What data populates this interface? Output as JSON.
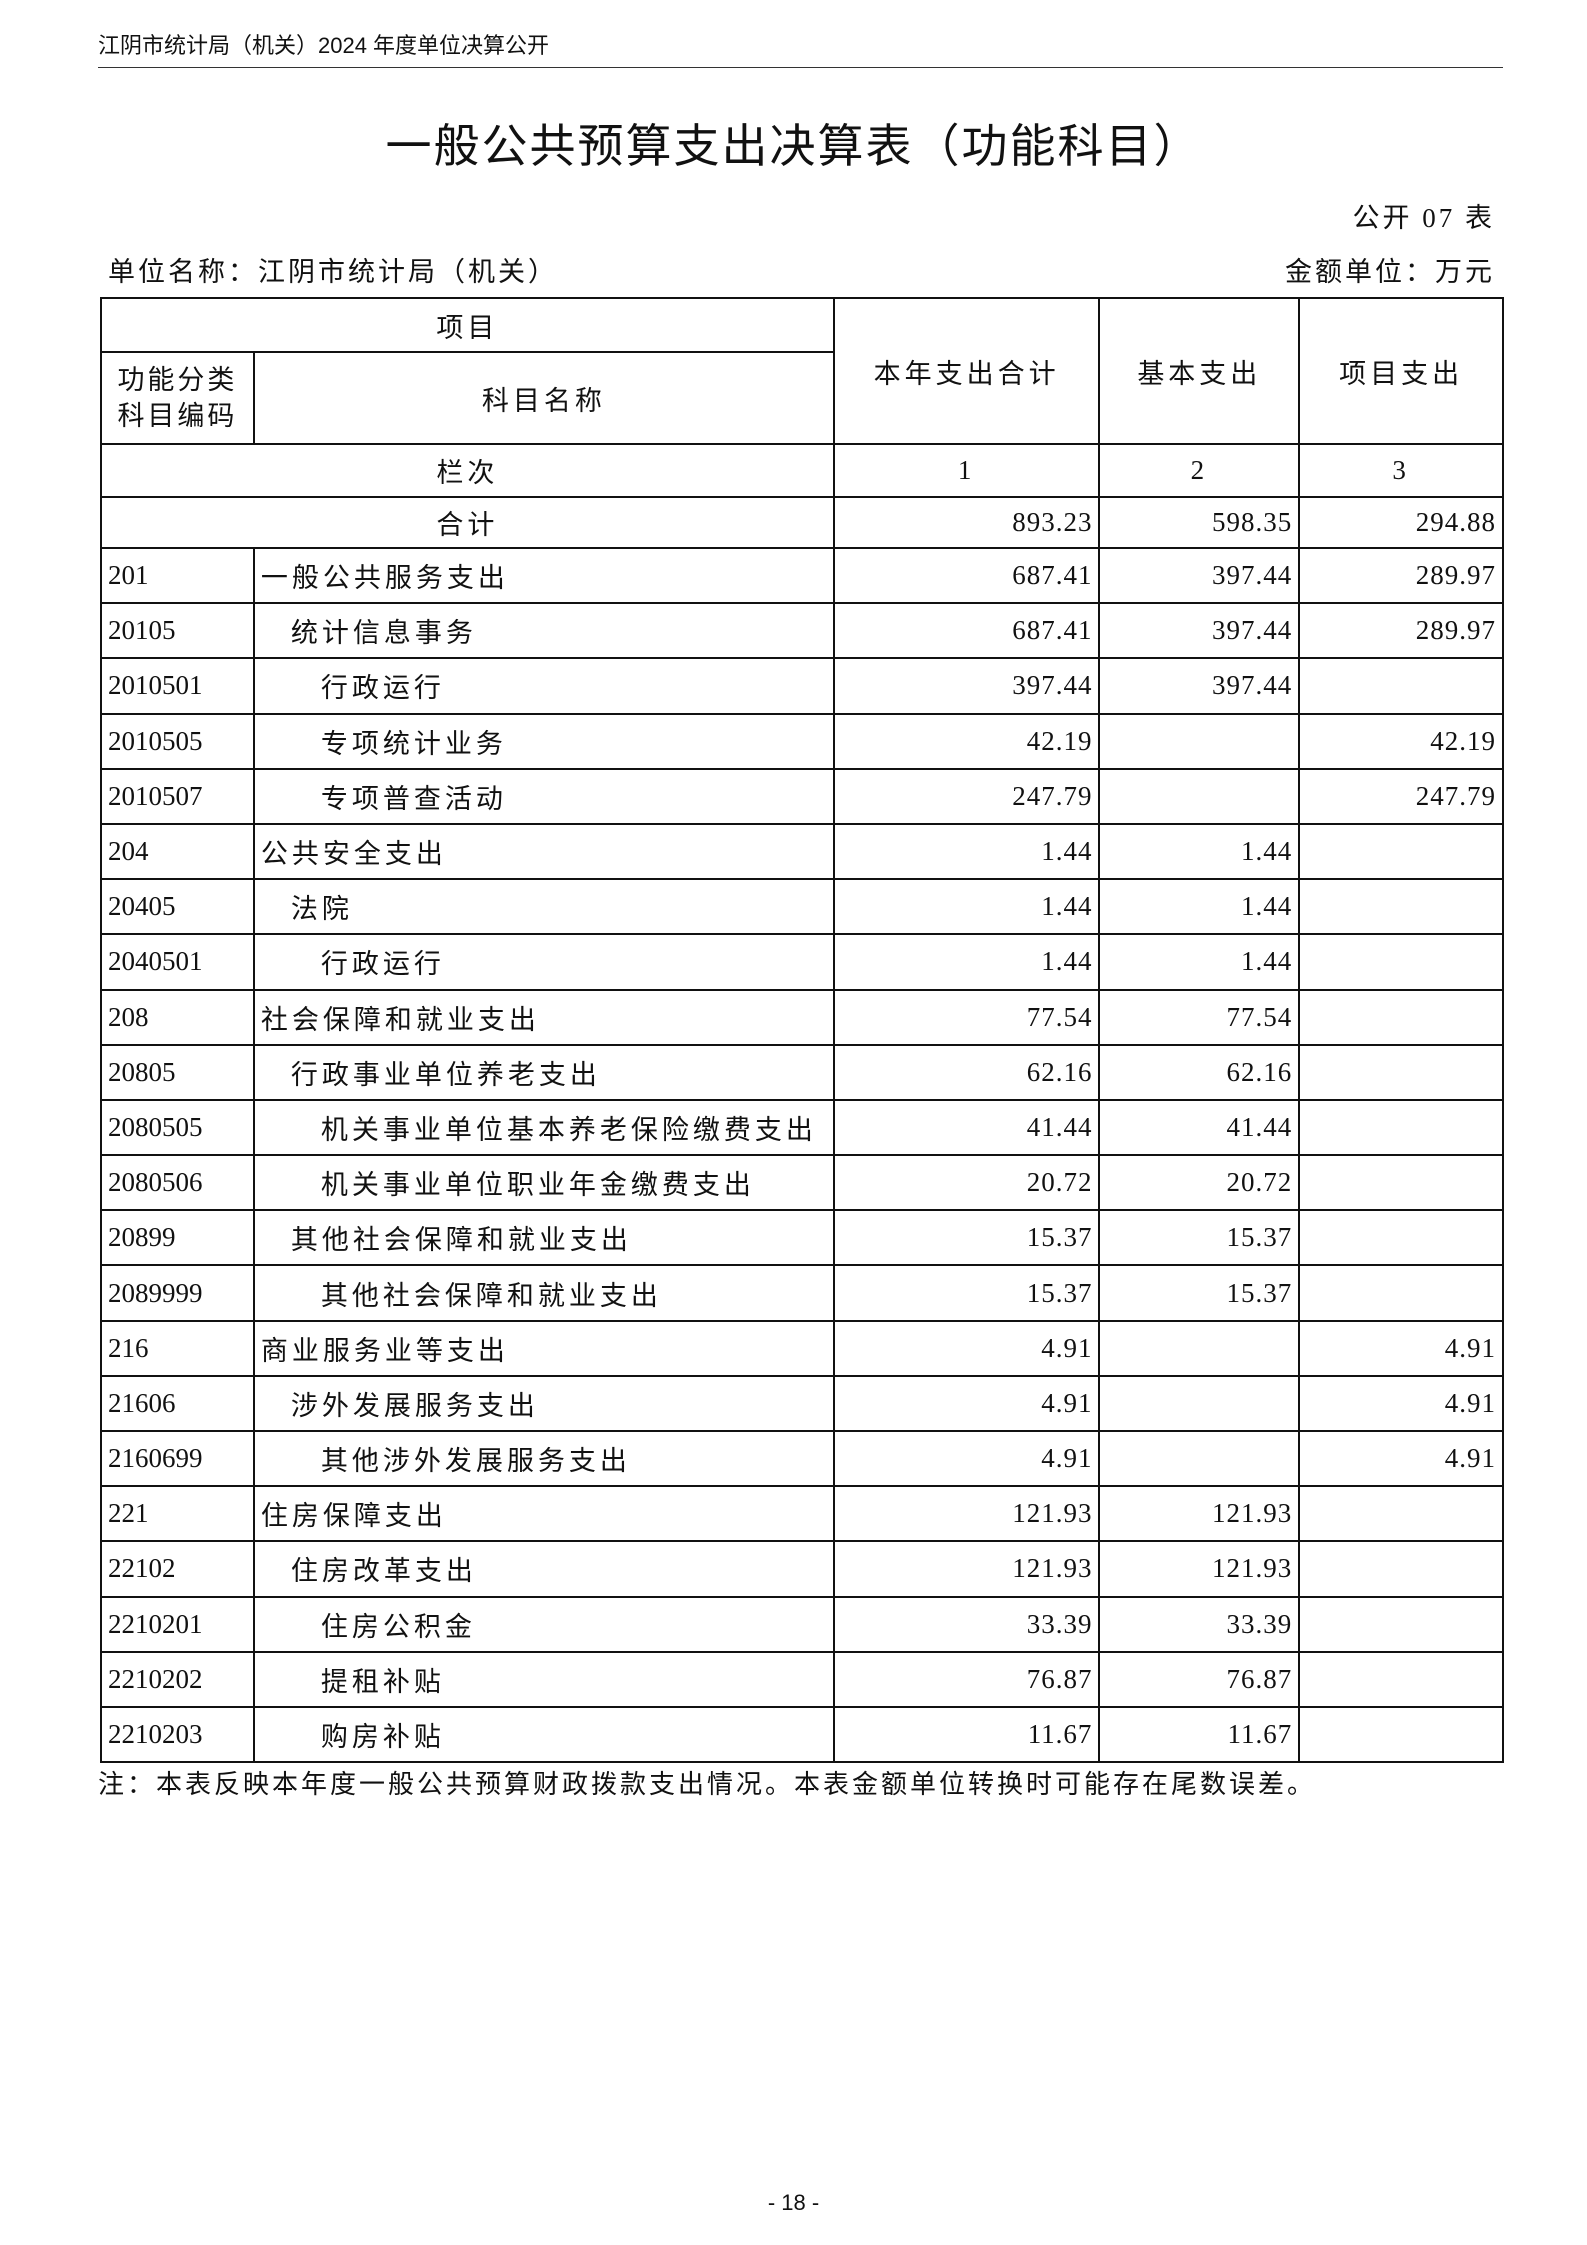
{
  "page_header": "江阴市统计局（机关）2024 年度单位决算公开",
  "title": "一般公共预算支出决算表（功能科目）",
  "table_no": "公开 07 表",
  "unit_name": "单位名称：江阴市统计局（机关）",
  "money_unit": "金额单位：万元",
  "columns": {
    "item": "项目",
    "code": "功能分类科目编码",
    "name": "科目名称",
    "total": "本年支出合计",
    "basic": "基本支出",
    "project": "项目支出",
    "seq_label": "栏次",
    "seq": [
      "1",
      "2",
      "3"
    ]
  },
  "total_row": {
    "label": "合计",
    "total": "893.23",
    "basic": "598.35",
    "project": "294.88"
  },
  "rows": [
    {
      "code": "201",
      "name": "一般公共服务支出",
      "level": 0,
      "total": "687.41",
      "basic": "397.44",
      "project": "289.97"
    },
    {
      "code": "20105",
      "name": "统计信息事务",
      "level": 1,
      "total": "687.41",
      "basic": "397.44",
      "project": "289.97"
    },
    {
      "code": "2010501",
      "name": "行政运行",
      "level": 2,
      "total": "397.44",
      "basic": "397.44",
      "project": ""
    },
    {
      "code": "2010505",
      "name": "专项统计业务",
      "level": 2,
      "total": "42.19",
      "basic": "",
      "project": "42.19"
    },
    {
      "code": "2010507",
      "name": "专项普查活动",
      "level": 2,
      "total": "247.79",
      "basic": "",
      "project": "247.79"
    },
    {
      "code": "204",
      "name": "公共安全支出",
      "level": 0,
      "total": "1.44",
      "basic": "1.44",
      "project": ""
    },
    {
      "code": "20405",
      "name": "法院",
      "level": 1,
      "total": "1.44",
      "basic": "1.44",
      "project": ""
    },
    {
      "code": "2040501",
      "name": "行政运行",
      "level": 2,
      "total": "1.44",
      "basic": "1.44",
      "project": ""
    },
    {
      "code": "208",
      "name": "社会保障和就业支出",
      "level": 0,
      "total": "77.54",
      "basic": "77.54",
      "project": ""
    },
    {
      "code": "20805",
      "name": "行政事业单位养老支出",
      "level": 1,
      "total": "62.16",
      "basic": "62.16",
      "project": ""
    },
    {
      "code": "2080505",
      "name": "机关事业单位基本养老保险缴费支出",
      "level": 2,
      "total": "41.44",
      "basic": "41.44",
      "project": ""
    },
    {
      "code": "2080506",
      "name": "机关事业单位职业年金缴费支出",
      "level": 2,
      "total": "20.72",
      "basic": "20.72",
      "project": ""
    },
    {
      "code": "20899",
      "name": "其他社会保障和就业支出",
      "level": 1,
      "total": "15.37",
      "basic": "15.37",
      "project": ""
    },
    {
      "code": "2089999",
      "name": "其他社会保障和就业支出",
      "level": 2,
      "total": "15.37",
      "basic": "15.37",
      "project": ""
    },
    {
      "code": "216",
      "name": "商业服务业等支出",
      "level": 0,
      "total": "4.91",
      "basic": "",
      "project": "4.91"
    },
    {
      "code": "21606",
      "name": "涉外发展服务支出",
      "level": 1,
      "total": "4.91",
      "basic": "",
      "project": "4.91"
    },
    {
      "code": "2160699",
      "name": "其他涉外发展服务支出",
      "level": 2,
      "total": "4.91",
      "basic": "",
      "project": "4.91"
    },
    {
      "code": "221",
      "name": "住房保障支出",
      "level": 0,
      "total": "121.93",
      "basic": "121.93",
      "project": ""
    },
    {
      "code": "22102",
      "name": "住房改革支出",
      "level": 1,
      "total": "121.93",
      "basic": "121.93",
      "project": ""
    },
    {
      "code": "2210201",
      "name": "住房公积金",
      "level": 2,
      "total": "33.39",
      "basic": "33.39",
      "project": ""
    },
    {
      "code": "2210202",
      "name": "提租补贴",
      "level": 2,
      "total": "76.87",
      "basic": "76.87",
      "project": ""
    },
    {
      "code": "2210203",
      "name": "购房补贴",
      "level": 2,
      "total": "11.67",
      "basic": "11.67",
      "project": ""
    }
  ],
  "note": "注：本表反映本年度一般公共预算财政拨款支出情况。本表金额单位转换时可能存在尾数误差。",
  "page_number": "- 18 -"
}
